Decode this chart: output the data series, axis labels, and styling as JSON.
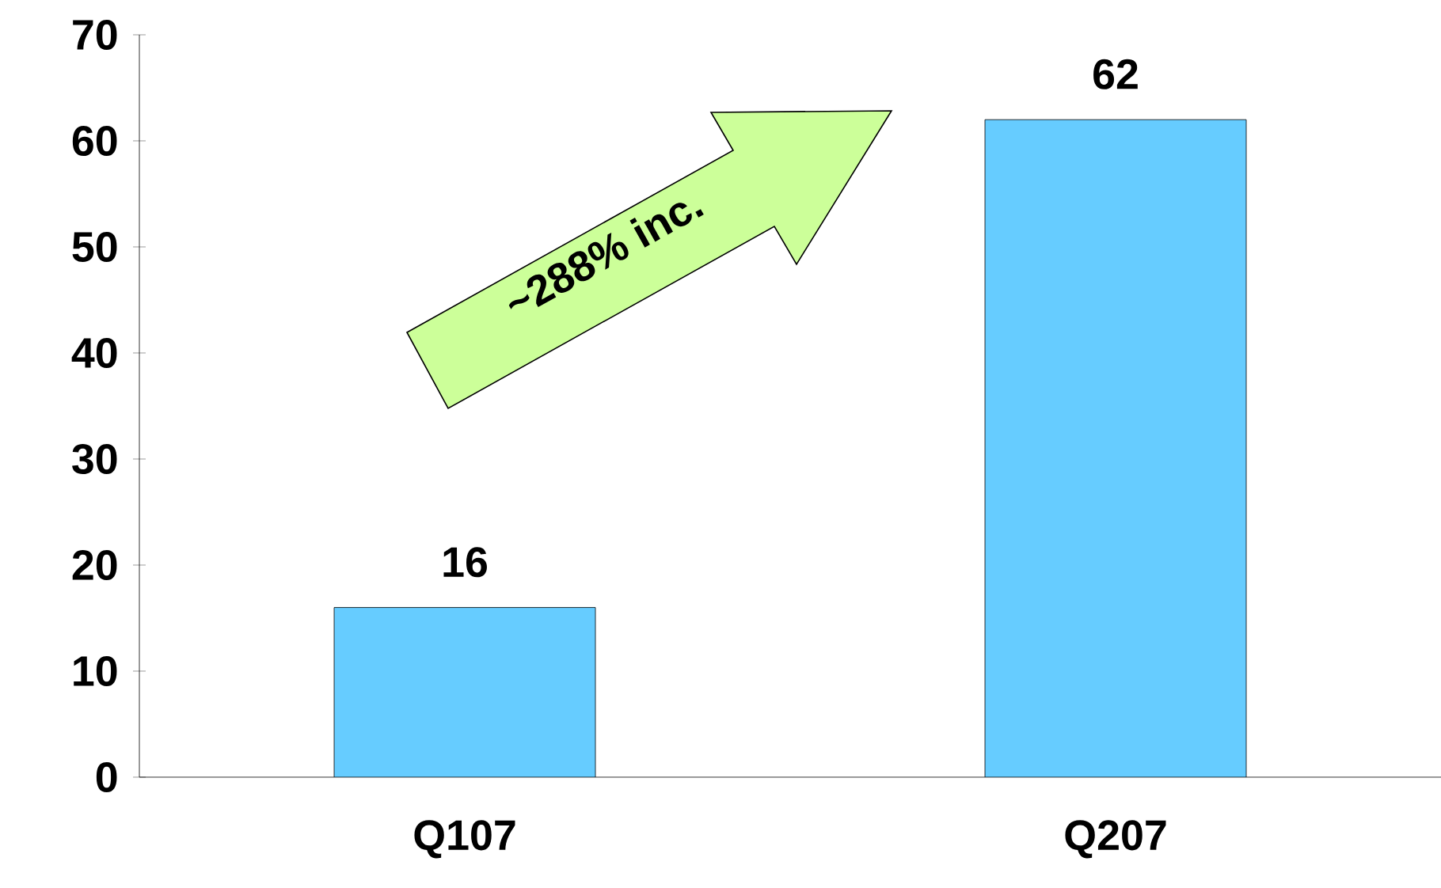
{
  "chart_data": {
    "type": "bar",
    "categories": [
      "Q107",
      "Q207"
    ],
    "values": [
      16,
      62
    ],
    "color": "#66ccff",
    "ylim": [
      0,
      70
    ],
    "yticks": [
      0,
      10,
      20,
      30,
      40,
      50,
      60,
      70
    ],
    "data_labels": true,
    "grid": false,
    "annotations": [
      "~288% inc."
    ]
  }
}
